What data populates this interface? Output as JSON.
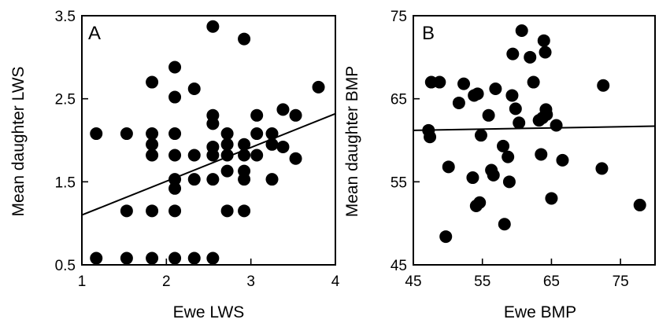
{
  "chart_data": [
    {
      "type": "scatter",
      "panel_label": "A",
      "xlabel": "Ewe LWS",
      "ylabel": "Mean daughter LWS",
      "xlim": [
        1,
        4
      ],
      "ylim": [
        0.5,
        3.5
      ],
      "xticks": [
        1,
        2,
        3,
        4
      ],
      "yticks": [
        0.5,
        1.5,
        2.5,
        3.5
      ],
      "xtick_labels": [
        "1",
        "2",
        "3",
        "4"
      ],
      "ytick_labels": [
        "0.5",
        "1.5",
        "2.5",
        "3.5"
      ],
      "trendline": {
        "x": [
          1,
          4
        ],
        "y": [
          1.1,
          2.32
        ]
      },
      "points": [
        {
          "x": 1.17,
          "y": 0.58
        },
        {
          "x": 1.17,
          "y": 2.08
        },
        {
          "x": 1.53,
          "y": 0.58
        },
        {
          "x": 1.53,
          "y": 1.15
        },
        {
          "x": 1.53,
          "y": 2.08
        },
        {
          "x": 1.83,
          "y": 0.58
        },
        {
          "x": 1.83,
          "y": 1.15
        },
        {
          "x": 1.83,
          "y": 1.82
        },
        {
          "x": 1.83,
          "y": 1.95
        },
        {
          "x": 1.83,
          "y": 2.08
        },
        {
          "x": 1.83,
          "y": 2.7
        },
        {
          "x": 2.1,
          "y": 0.58
        },
        {
          "x": 2.1,
          "y": 1.15
        },
        {
          "x": 2.1,
          "y": 1.42
        },
        {
          "x": 2.1,
          "y": 1.53
        },
        {
          "x": 2.1,
          "y": 1.82
        },
        {
          "x": 2.1,
          "y": 2.08
        },
        {
          "x": 2.1,
          "y": 2.52
        },
        {
          "x": 2.1,
          "y": 2.88
        },
        {
          "x": 2.33,
          "y": 0.58
        },
        {
          "x": 2.33,
          "y": 1.53
        },
        {
          "x": 2.33,
          "y": 1.82
        },
        {
          "x": 2.33,
          "y": 2.62
        },
        {
          "x": 2.55,
          "y": 0.58
        },
        {
          "x": 2.55,
          "y": 1.53
        },
        {
          "x": 2.55,
          "y": 1.82
        },
        {
          "x": 2.55,
          "y": 1.92
        },
        {
          "x": 2.55,
          "y": 2.2
        },
        {
          "x": 2.55,
          "y": 2.3
        },
        {
          "x": 2.55,
          "y": 3.37
        },
        {
          "x": 2.72,
          "y": 1.15
        },
        {
          "x": 2.72,
          "y": 1.63
        },
        {
          "x": 2.72,
          "y": 1.82
        },
        {
          "x": 2.72,
          "y": 1.95
        },
        {
          "x": 2.72,
          "y": 2.08
        },
        {
          "x": 2.92,
          "y": 1.15
        },
        {
          "x": 2.92,
          "y": 1.53
        },
        {
          "x": 2.92,
          "y": 1.63
        },
        {
          "x": 2.92,
          "y": 1.82
        },
        {
          "x": 2.92,
          "y": 1.95
        },
        {
          "x": 2.92,
          "y": 3.22
        },
        {
          "x": 3.07,
          "y": 1.82
        },
        {
          "x": 3.07,
          "y": 2.08
        },
        {
          "x": 3.07,
          "y": 2.3
        },
        {
          "x": 3.25,
          "y": 1.53
        },
        {
          "x": 3.25,
          "y": 1.95
        },
        {
          "x": 3.25,
          "y": 2.08
        },
        {
          "x": 3.38,
          "y": 1.92
        },
        {
          "x": 3.38,
          "y": 2.37
        },
        {
          "x": 3.53,
          "y": 1.78
        },
        {
          "x": 3.53,
          "y": 2.3
        },
        {
          "x": 3.8,
          "y": 2.64
        }
      ]
    },
    {
      "type": "scatter",
      "panel_label": "B",
      "xlabel": "Ewe BMP",
      "ylabel": "Mean daughter BMP",
      "xlim": [
        45,
        80
      ],
      "ylim": [
        45,
        75
      ],
      "xticks": [
        45,
        55,
        65,
        75
      ],
      "yticks": [
        45,
        55,
        65,
        75
      ],
      "xtick_labels": [
        "45",
        "55",
        "65",
        "75"
      ],
      "ytick_labels": [
        "45",
        "55",
        "65",
        "75"
      ],
      "trendline": {
        "x": [
          45,
          80
        ],
        "y": [
          61.2,
          61.7
        ]
      },
      "points": [
        {
          "x": 47.2,
          "y": 61.2
        },
        {
          "x": 47.4,
          "y": 60.4
        },
        {
          "x": 47.6,
          "y": 67.0
        },
        {
          "x": 48.8,
          "y": 67.0
        },
        {
          "x": 49.7,
          "y": 48.4
        },
        {
          "x": 50.1,
          "y": 56.8
        },
        {
          "x": 51.6,
          "y": 64.5
        },
        {
          "x": 52.3,
          "y": 66.8
        },
        {
          "x": 53.6,
          "y": 55.5
        },
        {
          "x": 53.8,
          "y": 65.4
        },
        {
          "x": 54.1,
          "y": 52.1
        },
        {
          "x": 54.3,
          "y": 65.6
        },
        {
          "x": 54.6,
          "y": 52.5
        },
        {
          "x": 54.8,
          "y": 60.6
        },
        {
          "x": 55.9,
          "y": 63.0
        },
        {
          "x": 56.3,
          "y": 56.4
        },
        {
          "x": 56.6,
          "y": 55.8
        },
        {
          "x": 56.9,
          "y": 66.2
        },
        {
          "x": 58.0,
          "y": 59.3
        },
        {
          "x": 58.2,
          "y": 49.9
        },
        {
          "x": 58.7,
          "y": 58.0
        },
        {
          "x": 58.9,
          "y": 55.0
        },
        {
          "x": 59.3,
          "y": 65.4
        },
        {
          "x": 59.4,
          "y": 70.4
        },
        {
          "x": 59.8,
          "y": 63.8
        },
        {
          "x": 60.3,
          "y": 62.1
        },
        {
          "x": 60.7,
          "y": 73.2
        },
        {
          "x": 61.9,
          "y": 70.0
        },
        {
          "x": 62.4,
          "y": 67.0
        },
        {
          "x": 63.2,
          "y": 62.4
        },
        {
          "x": 63.5,
          "y": 58.3
        },
        {
          "x": 63.7,
          "y": 62.7
        },
        {
          "x": 63.9,
          "y": 72.0
        },
        {
          "x": 64.1,
          "y": 70.6
        },
        {
          "x": 64.2,
          "y": 63.7
        },
        {
          "x": 64.3,
          "y": 63.1
        },
        {
          "x": 65.0,
          "y": 53.0
        },
        {
          "x": 65.7,
          "y": 61.8
        },
        {
          "x": 66.6,
          "y": 57.6
        },
        {
          "x": 72.3,
          "y": 56.6
        },
        {
          "x": 72.5,
          "y": 66.6
        },
        {
          "x": 77.8,
          "y": 52.2
        }
      ]
    }
  ]
}
